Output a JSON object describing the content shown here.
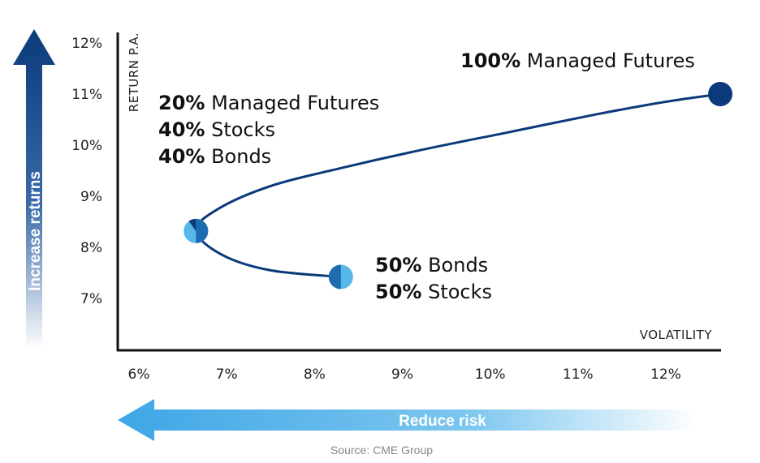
{
  "colors": {
    "dark_blue": "#0b3a7a",
    "mid_blue": "#1f6bb0",
    "light_blue": "#55b7ea",
    "axis": "#111111"
  },
  "chart_data": {
    "type": "line",
    "xlabel": "VOLATILITY",
    "ylabel": "RETURN P.A.",
    "xlim": [
      5.8,
      12.8
    ],
    "ylim": [
      6.2,
      12.3
    ],
    "x_ticks": [
      "6%",
      "7%",
      "8%",
      "9%",
      "10%",
      "11%",
      "12%"
    ],
    "x_tick_values": [
      6,
      7,
      8,
      9,
      10,
      11,
      12
    ],
    "y_ticks": [
      "7%",
      "8%",
      "9%",
      "10%",
      "11%",
      "12%"
    ],
    "y_tick_values": [
      7,
      8,
      9,
      10,
      11,
      12
    ],
    "grid": false,
    "series": [
      {
        "points": [
          {
            "x": 8.3,
            "y": 7.42
          },
          {
            "x": 7.5,
            "y": 7.55
          },
          {
            "x": 6.95,
            "y": 7.85
          },
          {
            "x": 6.65,
            "y": 8.32
          },
          {
            "x": 6.9,
            "y": 8.75
          },
          {
            "x": 7.5,
            "y": 9.2
          },
          {
            "x": 8.3,
            "y": 9.55
          },
          {
            "x": 9.2,
            "y": 9.9
          },
          {
            "x": 10.2,
            "y": 10.25
          },
          {
            "x": 11.2,
            "y": 10.6
          },
          {
            "x": 12.0,
            "y": 10.85
          },
          {
            "x": 12.62,
            "y": 11.0
          }
        ]
      }
    ],
    "markers": [
      {
        "x": 8.3,
        "y": 7.42,
        "style": "half",
        "label_bold": [
          "50%",
          "50%"
        ],
        "label_rest": [
          " Bonds",
          " Stocks"
        ]
      },
      {
        "x": 6.65,
        "y": 8.32,
        "style": "mixed",
        "label_bold": [
          "20%",
          "40%",
          "40%"
        ],
        "label_rest": [
          " Managed Futures",
          " Stocks",
          " Bonds"
        ]
      },
      {
        "x": 12.62,
        "y": 11.0,
        "style": "solid",
        "label_bold": [
          "100%"
        ],
        "label_rest": [
          " Managed Futures"
        ]
      }
    ]
  },
  "arrows": {
    "vertical_label": "Increase returns",
    "horizontal_label": "Reduce risk"
  },
  "source": "Source: CME Group"
}
